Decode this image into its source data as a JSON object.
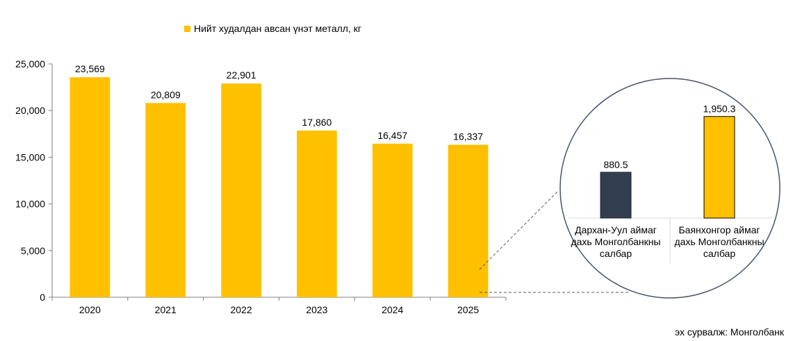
{
  "legend": {
    "label": "Нийт худалдан авсан үнэт металл, кг",
    "color": "#FFC000"
  },
  "source": "эх сурвалж: Монголбанк",
  "chart_data": [
    {
      "type": "bar",
      "categories": [
        "2020",
        "2021",
        "2022",
        "2023",
        "2024",
        "2025"
      ],
      "values": [
        23569,
        20809,
        22901,
        17860,
        16457,
        16337
      ],
      "value_labels": [
        "23,569",
        "20,809",
        "22,901",
        "17,860",
        "16,457",
        "16,337"
      ],
      "ylim": [
        0,
        25000
      ],
      "yticks": [
        0,
        5000,
        10000,
        15000,
        20000,
        25000
      ],
      "ytick_labels": [
        "0",
        "5,000",
        "10,000",
        "15,000",
        "20,000",
        "25,000"
      ],
      "series_name": "Нийт худалдан авсан үнэт металл, кг",
      "color": "#FFC000",
      "grid": false,
      "legend_position": "top-left"
    },
    {
      "type": "bar",
      "categories": [
        [
          "Дархан-Уул аймаг",
          "дахь Монголбанкны",
          "салбар"
        ],
        [
          "Баянхонгор аймаг",
          "дахь Монголбанкны",
          "салбар"
        ]
      ],
      "values": [
        880.5,
        1950.3
      ],
      "value_labels": [
        "880.5",
        "1,950.3"
      ],
      "colors": [
        "#323E4F",
        "#FFC000"
      ],
      "zoom_of": "2025"
    }
  ]
}
